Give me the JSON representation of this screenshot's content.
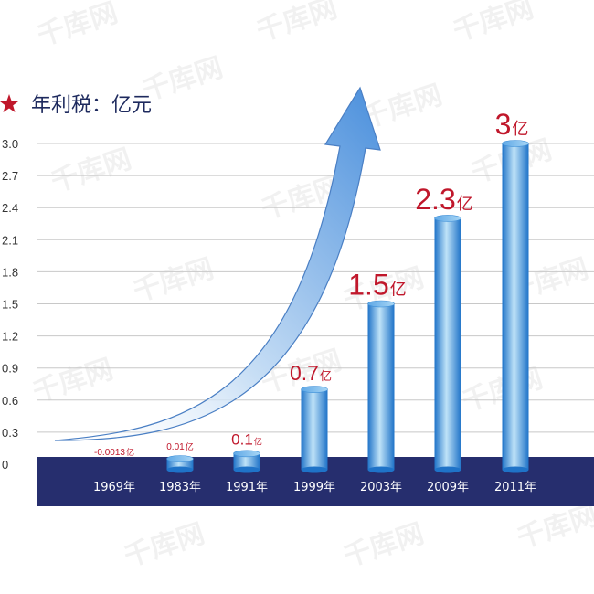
{
  "colors": {
    "base_band": "#262e6e",
    "gridline": "#c8c8c8",
    "bar_dark": "#1f73c8",
    "bar_light": "#bfe3f8",
    "label_red": "#c0172b",
    "title_star": "#c0172b",
    "title_text": "#1e2a5e",
    "arrow_fill": "#5b9be0",
    "arrow_light": "#ffffff"
  },
  "watermark": "千库网",
  "chart_data": {
    "type": "bar",
    "title": "年利税：亿元",
    "title_icon": "star-icon",
    "categories": [
      "1969年",
      "1983年",
      "1991年",
      "1999年",
      "2003年",
      "2009年",
      "2011年"
    ],
    "values": [
      -0.0013,
      0.01,
      0.1,
      0.7,
      1.5,
      2.3,
      3.0
    ],
    "data_labels": [
      {
        "num": "-0.0013",
        "unit": "亿"
      },
      {
        "num": "0.01",
        "unit": "亿"
      },
      {
        "num": "0.1",
        "unit": "亿"
      },
      {
        "num": "0.7",
        "unit": "亿"
      },
      {
        "num": "1.5",
        "unit": "亿"
      },
      {
        "num": "2.3",
        "unit": "亿"
      },
      {
        "num": "3",
        "unit": "亿"
      }
    ],
    "yticks": [
      "0",
      "0.3",
      "0.6",
      "0.9",
      "1.2",
      "1.5",
      "1.8",
      "2.1",
      "2.4",
      "2.7",
      "3.0"
    ],
    "ylim": [
      0,
      3.0
    ],
    "grid": true,
    "xlabel": "",
    "ylabel": ""
  }
}
